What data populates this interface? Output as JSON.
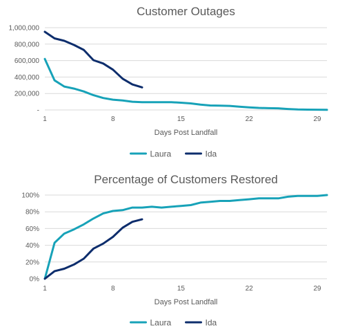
{
  "chart_data": [
    {
      "type": "line",
      "title": "Customer Outages",
      "xlabel": "Days Post Landfall",
      "ylabel": "",
      "xlim": [
        1,
        30
      ],
      "ylim": [
        0,
        1000000
      ],
      "x_ticks": [
        1,
        8,
        15,
        22,
        29
      ],
      "y_ticks": [
        {
          "value": 0,
          "label": "-"
        },
        {
          "value": 200000,
          "label": "200,000"
        },
        {
          "value": 400000,
          "label": "400,000"
        },
        {
          "value": 600000,
          "label": "600,000"
        },
        {
          "value": 800000,
          "label": "800,000"
        },
        {
          "value": 1000000,
          "label": "1,000,000"
        }
      ],
      "grid": true,
      "legend_position": "bottom",
      "series": [
        {
          "name": "Laura",
          "color": "#17a2b8",
          "points": [
            [
              1,
              620000
            ],
            [
              2,
              360000
            ],
            [
              3,
              285000
            ],
            [
              4,
              260000
            ],
            [
              5,
              225000
            ],
            [
              6,
              180000
            ],
            [
              7,
              145000
            ],
            [
              8,
              125000
            ],
            [
              9,
              115000
            ],
            [
              10,
              100000
            ],
            [
              11,
              95000
            ],
            [
              12,
              95000
            ],
            [
              13,
              95000
            ],
            [
              14,
              95000
            ],
            [
              15,
              88000
            ],
            [
              16,
              80000
            ],
            [
              17,
              65000
            ],
            [
              18,
              55000
            ],
            [
              19,
              52000
            ],
            [
              20,
              50000
            ],
            [
              21,
              40000
            ],
            [
              22,
              32000
            ],
            [
              23,
              25000
            ],
            [
              24,
              22000
            ],
            [
              25,
              20000
            ],
            [
              26,
              12000
            ],
            [
              27,
              6000
            ],
            [
              28,
              4000
            ],
            [
              29,
              3000
            ],
            [
              30,
              2000
            ]
          ]
        },
        {
          "name": "Ida",
          "color": "#0d2d6c",
          "points": [
            [
              1,
              950000
            ],
            [
              2,
              870000
            ],
            [
              3,
              840000
            ],
            [
              4,
              790000
            ],
            [
              5,
              730000
            ],
            [
              6,
              605000
            ],
            [
              7,
              565000
            ],
            [
              8,
              490000
            ],
            [
              9,
              380000
            ],
            [
              10,
              310000
            ],
            [
              11,
              275000
            ]
          ]
        }
      ]
    },
    {
      "type": "line",
      "title": "Percentage of Customers Restored",
      "xlabel": "Days Post Landfall",
      "ylabel": "",
      "xlim": [
        1,
        30
      ],
      "ylim": [
        0,
        100
      ],
      "x_ticks": [
        1,
        8,
        15,
        22,
        29
      ],
      "y_ticks": [
        {
          "value": 0,
          "label": "0%"
        },
        {
          "value": 20,
          "label": "20%"
        },
        {
          "value": 40,
          "label": "40%"
        },
        {
          "value": 60,
          "label": "60%"
        },
        {
          "value": 80,
          "label": "80%"
        },
        {
          "value": 100,
          "label": "100%"
        }
      ],
      "grid": true,
      "legend_position": "bottom",
      "series": [
        {
          "name": "Laura",
          "color": "#17a2b8",
          "points": [
            [
              1,
              0
            ],
            [
              2,
              43
            ],
            [
              3,
              54
            ],
            [
              4,
              59
            ],
            [
              5,
              65
            ],
            [
              6,
              72
            ],
            [
              7,
              78
            ],
            [
              8,
              81
            ],
            [
              9,
              82
            ],
            [
              10,
              85
            ],
            [
              11,
              85
            ],
            [
              12,
              86
            ],
            [
              13,
              85
            ],
            [
              14,
              86
            ],
            [
              15,
              87
            ],
            [
              16,
              88
            ],
            [
              17,
              91
            ],
            [
              18,
              92
            ],
            [
              19,
              93
            ],
            [
              20,
              93
            ],
            [
              21,
              94
            ],
            [
              22,
              95
            ],
            [
              23,
              96
            ],
            [
              24,
              96
            ],
            [
              25,
              96
            ],
            [
              26,
              98
            ],
            [
              27,
              99
            ],
            [
              28,
              99
            ],
            [
              29,
              99
            ],
            [
              30,
              100
            ]
          ]
        },
        {
          "name": "Ida",
          "color": "#0d2d6c",
          "points": [
            [
              1,
              0
            ],
            [
              2,
              9
            ],
            [
              3,
              12
            ],
            [
              4,
              17
            ],
            [
              5,
              24
            ],
            [
              6,
              36
            ],
            [
              7,
              42
            ],
            [
              8,
              50
            ],
            [
              9,
              61
            ],
            [
              10,
              68
            ],
            [
              11,
              71
            ]
          ]
        }
      ]
    }
  ]
}
